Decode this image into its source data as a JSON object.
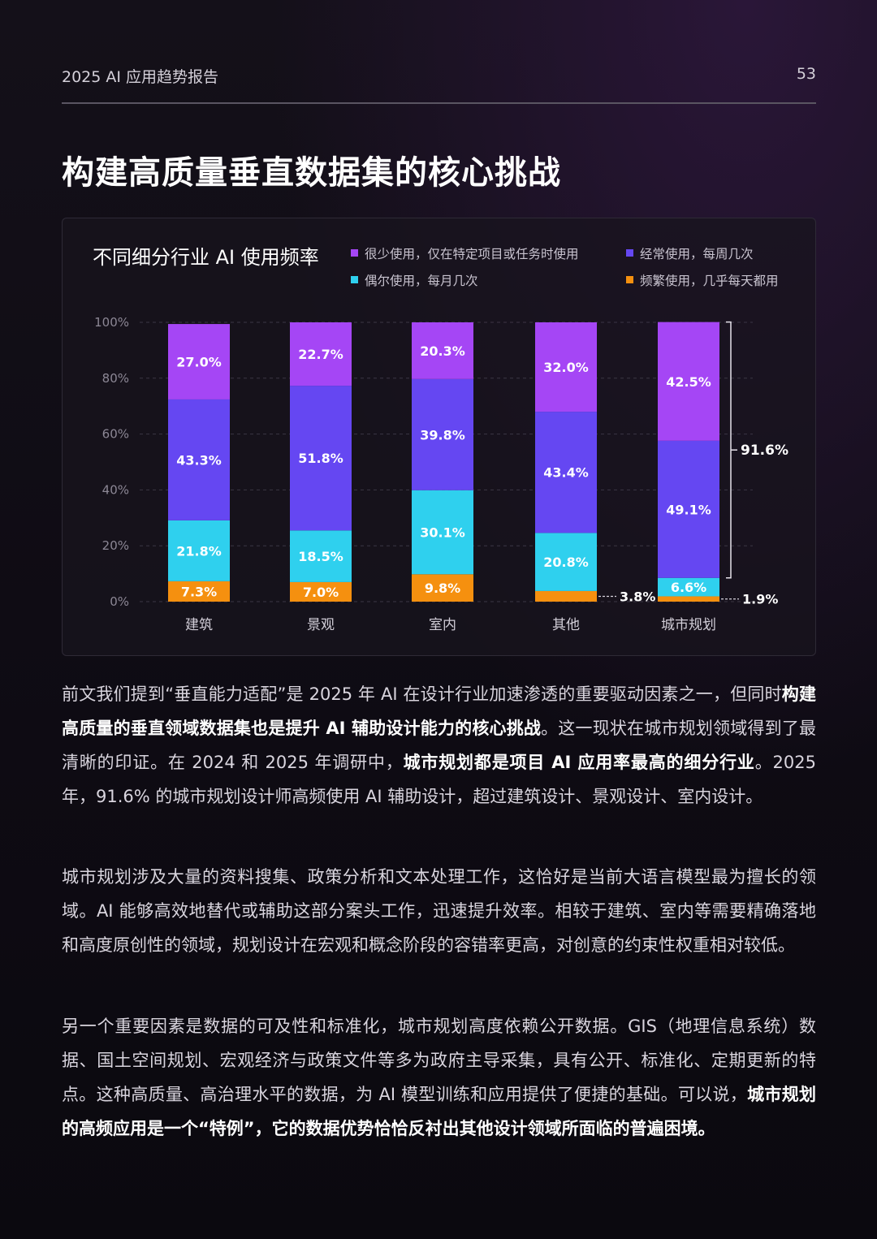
{
  "header": {
    "doc_title": "2025 AI 应用趋势报告",
    "page_number": "53"
  },
  "headline": "构建高质量垂直数据集的核心挑战",
  "chart_data": {
    "type": "bar",
    "stacked": true,
    "title": "不同细分行业 AI 使用频率",
    "categories": [
      "建筑",
      "景观",
      "室内",
      "其他",
      "城市规划"
    ],
    "yticks": [
      "0%",
      "20%",
      "40%",
      "60%",
      "80%",
      "100%"
    ],
    "ylim": [
      0,
      100
    ],
    "series": [
      {
        "name": "频繁使用，几乎每天都用",
        "color": "#f5900f",
        "values": [
          7.3,
          7.0,
          9.8,
          3.8,
          1.9
        ],
        "labels": [
          "7.3%",
          "7.0%",
          "9.8%",
          "3.8%",
          "1.9%"
        ]
      },
      {
        "name": "偶尔使用，每月几次",
        "color": "#2fd0ee",
        "values": [
          21.8,
          18.5,
          30.1,
          20.8,
          6.6
        ],
        "labels": [
          "21.8%",
          "18.5%",
          "30.1%",
          "20.8%",
          "6.6%"
        ]
      },
      {
        "name": "经常使用，每周几次",
        "color": "#6547f2",
        "values": [
          43.3,
          51.8,
          39.8,
          43.4,
          49.1
        ],
        "labels": [
          "43.3%",
          "51.8%",
          "39.8%",
          "43.4%",
          "49.1%"
        ]
      },
      {
        "name": "很少使用，仅在特定项目或任务时使用",
        "color": "#a546f5",
        "values": [
          27.0,
          22.7,
          20.3,
          32.0,
          42.5
        ],
        "labels": [
          "27.0%",
          "22.7%",
          "20.3%",
          "32.0%",
          "42.5%"
        ]
      }
    ],
    "annotation": {
      "category": "城市规划",
      "text": "91.6%"
    },
    "legend": "top-right",
    "grid": true
  },
  "legend_order": [
    3,
    2,
    1,
    0
  ],
  "paragraphs": [
    [
      {
        "t": "前文我们提到“垂直能力适配”是 2025 年 AI 在设计行业加速渗透的重要驱动因素之一，但同时"
      },
      {
        "t": "构建高质量的垂直领域数据集也是提升 AI 辅助设计能力的核心挑战",
        "b": true
      },
      {
        "t": "。这一现状在城市规划领域得到了最清晰的印证。在 2024 和 2025 年调研中，"
      },
      {
        "t": "城市规划都是项目 AI 应用率最高的细分行业",
        "b": true
      },
      {
        "t": "。2025 年，91.6% 的城市规划设计师高频使用 AI 辅助设计，超过建筑设计、景观设计、室内设计。"
      }
    ],
    [
      {
        "t": "城市规划涉及大量的资料搜集、政策分析和文本处理工作，这恰好是当前大语言模型最为擅长的领域。AI 能够高效地替代或辅助这部分案头工作，迅速提升效率。相较于建筑、室内等需要精确落地和高度原创性的领域，规划设计在宏观和概念阶段的容错率更高，对创意的约束性权重相对较低。"
      }
    ],
    [
      {
        "t": "另一个重要因素是数据的可及性和标准化，城市规划高度依赖公开数据。GIS（地理信息系统）数据、国土空间规划、宏观经济与政策文件等多为政府主导采集，具有公开、标准化、定期更新的特点。这种高质量、高治理水平的数据，为 AI 模型训练和应用提供了便捷的基础。可以说，"
      },
      {
        "t": "城市规划的高频应用是一个“特例”，它的数据优势恰恰反衬出其他设计领域所面临的普遍困境。",
        "b": true
      }
    ]
  ]
}
